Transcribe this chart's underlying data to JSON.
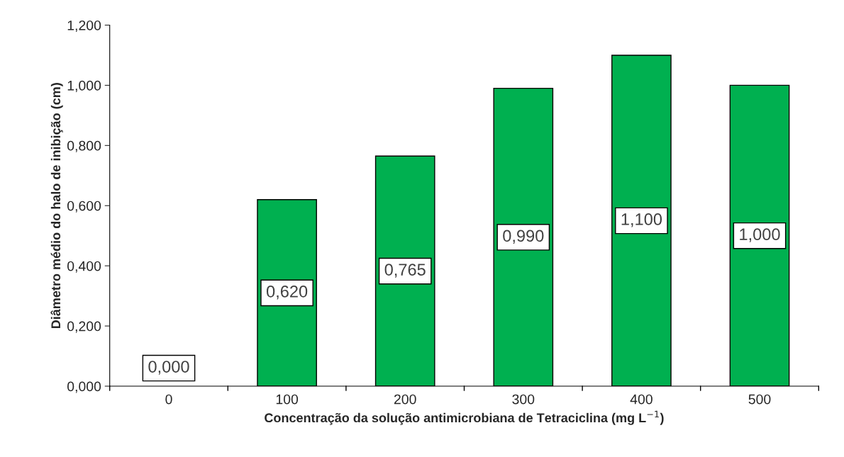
{
  "chart_data": {
    "type": "bar",
    "xlabel": "Concentração da solução antimicrobiana de Tetraciclina (mg L$^{−1}$)",
    "ylabel": "Diâmetro médio do halo de inibição (cm)",
    "categories": [
      "0",
      "100",
      "200",
      "300",
      "400",
      "500"
    ],
    "values": [
      0.0,
      0.62,
      0.765,
      0.99,
      1.1,
      1.0
    ],
    "value_labels": [
      "0,000",
      "0,620",
      "0,765",
      "0,990",
      "1,100",
      "1,000"
    ],
    "color": "#00b050",
    "ylim": [
      0,
      1.2
    ],
    "yticks": [
      {
        "value": 0,
        "label": "0,000"
      },
      {
        "value": 0.2,
        "label": "0,200"
      },
      {
        "value": 0.4,
        "label": "0,400"
      },
      {
        "value": 0.6,
        "label": "0,600"
      },
      {
        "value": 0.8,
        "label": "0,800"
      },
      {
        "value": 1.0,
        "label": "1,000"
      },
      {
        "value": 1.2,
        "label": "1,200"
      }
    ],
    "grid": false,
    "legend": false
  }
}
